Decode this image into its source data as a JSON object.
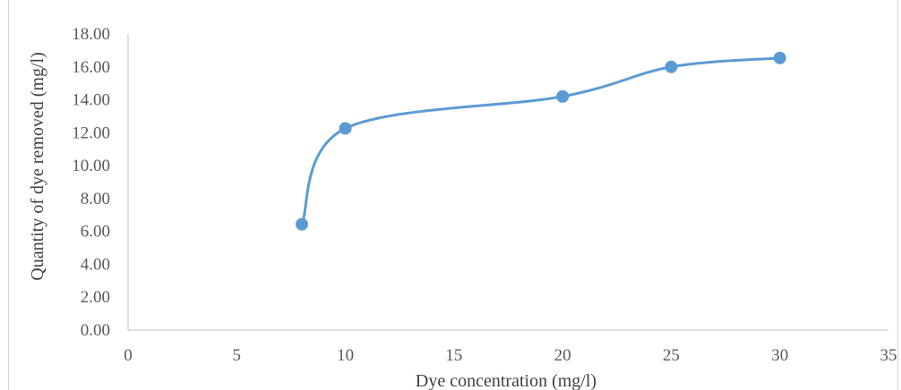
{
  "chart_data": {
    "type": "scatter",
    "title": "",
    "xlabel": "Dye concentration (mg/l)",
    "ylabel": "Quantity of dye removed (mg/l)",
    "xlim": [
      0,
      35
    ],
    "ylim": [
      0,
      18
    ],
    "xticks": [
      0,
      5,
      10,
      15,
      20,
      25,
      30,
      35
    ],
    "yticks": [
      0,
      2,
      4,
      6,
      8,
      10,
      12,
      14,
      16,
      18
    ],
    "x_tick_labels": [
      "0",
      "5",
      "10",
      "15",
      "20",
      "25",
      "30",
      "35"
    ],
    "y_tick_labels": [
      "0.00",
      "2.00",
      "4.00",
      "6.00",
      "8.00",
      "10.00",
      "12.00",
      "14.00",
      "16.00",
      "18.00"
    ],
    "series": [
      {
        "x": [
          8,
          10,
          20,
          25,
          30
        ],
        "y": [
          6.43,
          12.26,
          14.2,
          16.0,
          16.54
        ],
        "color": "#5B9BD5",
        "line": "smooth",
        "marker": "circle"
      }
    ],
    "grid": false,
    "legend": "none"
  }
}
